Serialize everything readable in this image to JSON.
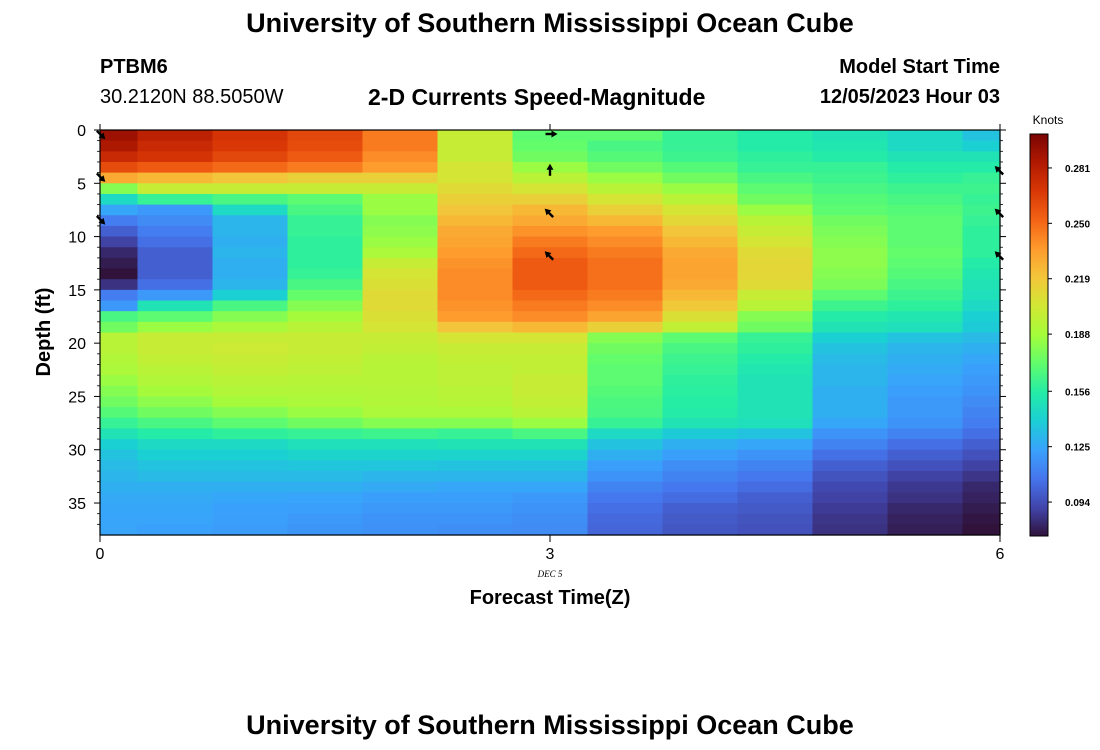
{
  "header": {
    "title": "University of Southern Mississippi Ocean Cube",
    "station_id": "PTBM6",
    "station_coords": "30.2120N  88.5050W",
    "subtitle": "2-D Currents Speed-Magnitude",
    "model_start_label": "Model Start Time",
    "model_start_value": "12/05/2023 Hour 03"
  },
  "footer": {
    "title": "University of Southern Mississippi Ocean Cube"
  },
  "chart_data": {
    "type": "heatmap",
    "xlabel": "Forecast Time(Z)",
    "ylabel": "Depth (ft)",
    "x_date_label": "DEC 5",
    "xlim": [
      0,
      6
    ],
    "ylim": [
      38,
      0
    ],
    "x_ticks": [
      0,
      3,
      6
    ],
    "y_ticks": [
      0,
      5,
      10,
      15,
      20,
      25,
      30,
      35
    ],
    "colorbar_label": "Knots",
    "colorbar_ticks": [
      0.094,
      0.125,
      0.156,
      0.188,
      0.219,
      0.25,
      0.281
    ],
    "colorbar_range": [
      0.075,
      0.3
    ],
    "colorscale": [
      "#30123b",
      "#4145ab",
      "#4675ed",
      "#39a2fc",
      "#1bcfd4",
      "#24eca6",
      "#61fc6c",
      "#a4fc3b",
      "#d1e834",
      "#f3c63a",
      "#fe9b2d",
      "#f36315",
      "#d93806",
      "#b11901",
      "#7a0402"
    ],
    "time_columns": [
      0,
      0.5,
      1,
      1.5,
      2,
      2.5,
      3,
      3.5,
      4,
      4.5,
      5,
      5.5,
      6
    ],
    "depth_rows_ft": [
      0,
      1,
      2,
      3,
      4,
      5,
      6,
      7,
      8,
      9,
      10,
      11,
      12,
      13,
      14,
      15,
      16,
      17,
      18,
      19,
      20,
      21,
      22,
      23,
      24,
      25,
      26,
      27,
      28,
      29,
      30,
      31,
      32,
      33,
      34,
      35,
      36,
      37
    ],
    "speed_knots": [
      [
        0.29,
        0.28,
        0.27,
        0.262,
        0.245,
        0.2,
        0.17,
        0.17,
        0.16,
        0.155,
        0.15,
        0.145,
        0.135
      ],
      [
        0.285,
        0.275,
        0.268,
        0.26,
        0.245,
        0.2,
        0.172,
        0.165,
        0.16,
        0.155,
        0.152,
        0.145,
        0.14
      ],
      [
        0.275,
        0.27,
        0.262,
        0.255,
        0.24,
        0.2,
        0.175,
        0.168,
        0.162,
        0.158,
        0.155,
        0.15,
        0.15
      ],
      [
        0.26,
        0.255,
        0.25,
        0.245,
        0.235,
        0.205,
        0.185,
        0.175,
        0.168,
        0.16,
        0.16,
        0.155,
        0.155
      ],
      [
        0.23,
        0.225,
        0.22,
        0.215,
        0.215,
        0.205,
        0.195,
        0.185,
        0.175,
        0.165,
        0.162,
        0.158,
        0.16
      ],
      [
        0.18,
        0.2,
        0.2,
        0.2,
        0.2,
        0.21,
        0.205,
        0.195,
        0.185,
        0.17,
        0.165,
        0.162,
        0.162
      ],
      [
        0.145,
        0.16,
        0.165,
        0.17,
        0.185,
        0.215,
        0.215,
        0.205,
        0.195,
        0.175,
        0.168,
        0.165,
        0.16
      ],
      [
        0.125,
        0.12,
        0.145,
        0.165,
        0.185,
        0.22,
        0.225,
        0.215,
        0.205,
        0.185,
        0.17,
        0.168,
        0.162
      ],
      [
        0.11,
        0.115,
        0.13,
        0.16,
        0.18,
        0.225,
        0.23,
        0.225,
        0.212,
        0.195,
        0.175,
        0.17,
        0.16
      ],
      [
        0.1,
        0.11,
        0.13,
        0.16,
        0.182,
        0.23,
        0.238,
        0.235,
        0.22,
        0.2,
        0.178,
        0.17,
        0.158
      ],
      [
        0.09,
        0.105,
        0.128,
        0.158,
        0.185,
        0.232,
        0.245,
        0.24,
        0.225,
        0.205,
        0.18,
        0.17,
        0.158
      ],
      [
        0.082,
        0.1,
        0.13,
        0.158,
        0.19,
        0.235,
        0.25,
        0.245,
        0.23,
        0.21,
        0.182,
        0.172,
        0.158
      ],
      [
        0.078,
        0.1,
        0.128,
        0.158,
        0.2,
        0.238,
        0.255,
        0.248,
        0.232,
        0.212,
        0.182,
        0.17,
        0.155
      ],
      [
        0.075,
        0.1,
        0.128,
        0.16,
        0.205,
        0.24,
        0.255,
        0.248,
        0.232,
        0.212,
        0.18,
        0.168,
        0.152
      ],
      [
        0.085,
        0.105,
        0.13,
        0.165,
        0.208,
        0.24,
        0.255,
        0.248,
        0.23,
        0.21,
        0.178,
        0.165,
        0.15
      ],
      [
        0.11,
        0.12,
        0.14,
        0.172,
        0.21,
        0.24,
        0.25,
        0.245,
        0.225,
        0.2,
        0.17,
        0.162,
        0.148
      ],
      [
        0.12,
        0.15,
        0.165,
        0.18,
        0.21,
        0.238,
        0.245,
        0.24,
        0.218,
        0.195,
        0.162,
        0.158,
        0.145
      ],
      [
        0.165,
        0.17,
        0.18,
        0.188,
        0.208,
        0.235,
        0.24,
        0.232,
        0.208,
        0.18,
        0.155,
        0.152,
        0.14
      ],
      [
        0.175,
        0.185,
        0.19,
        0.195,
        0.205,
        0.22,
        0.225,
        0.215,
        0.198,
        0.175,
        0.15,
        0.148,
        0.138
      ],
      [
        0.195,
        0.2,
        0.2,
        0.2,
        0.2,
        0.205,
        0.205,
        0.18,
        0.17,
        0.16,
        0.14,
        0.135,
        0.132
      ],
      [
        0.195,
        0.2,
        0.202,
        0.2,
        0.198,
        0.2,
        0.2,
        0.175,
        0.165,
        0.158,
        0.135,
        0.13,
        0.128
      ],
      [
        0.192,
        0.198,
        0.2,
        0.198,
        0.195,
        0.198,
        0.198,
        0.172,
        0.162,
        0.155,
        0.132,
        0.128,
        0.125
      ],
      [
        0.19,
        0.195,
        0.198,
        0.196,
        0.194,
        0.196,
        0.198,
        0.17,
        0.16,
        0.152,
        0.13,
        0.126,
        0.122
      ],
      [
        0.185,
        0.192,
        0.195,
        0.194,
        0.194,
        0.196,
        0.2,
        0.17,
        0.158,
        0.15,
        0.13,
        0.124,
        0.12
      ],
      [
        0.18,
        0.188,
        0.192,
        0.192,
        0.193,
        0.195,
        0.2,
        0.168,
        0.157,
        0.15,
        0.128,
        0.122,
        0.118
      ],
      [
        0.175,
        0.182,
        0.188,
        0.19,
        0.192,
        0.194,
        0.198,
        0.166,
        0.156,
        0.15,
        0.128,
        0.12,
        0.115
      ],
      [
        0.168,
        0.175,
        0.18,
        0.185,
        0.19,
        0.19,
        0.195,
        0.165,
        0.155,
        0.15,
        0.128,
        0.12,
        0.112
      ],
      [
        0.16,
        0.165,
        0.17,
        0.175,
        0.18,
        0.18,
        0.185,
        0.16,
        0.15,
        0.148,
        0.125,
        0.118,
        0.11
      ],
      [
        0.15,
        0.155,
        0.158,
        0.16,
        0.162,
        0.16,
        0.165,
        0.145,
        0.138,
        0.135,
        0.118,
        0.112,
        0.105
      ],
      [
        0.14,
        0.145,
        0.145,
        0.148,
        0.148,
        0.15,
        0.15,
        0.135,
        0.128,
        0.125,
        0.112,
        0.105,
        0.1
      ],
      [
        0.135,
        0.14,
        0.14,
        0.142,
        0.142,
        0.142,
        0.142,
        0.128,
        0.122,
        0.118,
        0.105,
        0.1,
        0.095
      ],
      [
        0.132,
        0.135,
        0.135,
        0.136,
        0.136,
        0.135,
        0.135,
        0.122,
        0.116,
        0.112,
        0.1,
        0.095,
        0.09
      ],
      [
        0.13,
        0.132,
        0.132,
        0.132,
        0.13,
        0.13,
        0.13,
        0.118,
        0.112,
        0.108,
        0.096,
        0.09,
        0.086
      ],
      [
        0.128,
        0.128,
        0.128,
        0.128,
        0.126,
        0.125,
        0.125,
        0.112,
        0.108,
        0.104,
        0.092,
        0.087,
        0.082
      ],
      [
        0.126,
        0.126,
        0.125,
        0.124,
        0.122,
        0.122,
        0.12,
        0.108,
        0.104,
        0.1,
        0.09,
        0.085,
        0.08
      ],
      [
        0.125,
        0.125,
        0.123,
        0.122,
        0.12,
        0.12,
        0.118,
        0.105,
        0.1,
        0.098,
        0.088,
        0.082,
        0.078
      ],
      [
        0.124,
        0.124,
        0.122,
        0.12,
        0.118,
        0.118,
        0.116,
        0.103,
        0.098,
        0.096,
        0.086,
        0.08,
        0.076
      ],
      [
        0.124,
        0.123,
        0.121,
        0.119,
        0.117,
        0.116,
        0.115,
        0.102,
        0.097,
        0.095,
        0.085,
        0.079,
        0.075
      ]
    ],
    "vectors": [
      {
        "x": 0,
        "depth": 0,
        "dir": "down-right"
      },
      {
        "x": 0,
        "depth": 4,
        "dir": "down-right"
      },
      {
        "x": 0,
        "depth": 8,
        "dir": "down-right"
      },
      {
        "x": 3,
        "depth": 0,
        "dir": "right"
      },
      {
        "x": 3,
        "depth": 3.5,
        "dir": "up"
      },
      {
        "x": 3,
        "depth": 7.5,
        "dir": "up-left"
      },
      {
        "x": 3,
        "depth": 11.5,
        "dir": "up-left"
      },
      {
        "x": 6,
        "depth": 3.5,
        "dir": "up-left"
      },
      {
        "x": 6,
        "depth": 7.5,
        "dir": "up-left"
      },
      {
        "x": 6,
        "depth": 11.5,
        "dir": "up-left"
      }
    ]
  }
}
